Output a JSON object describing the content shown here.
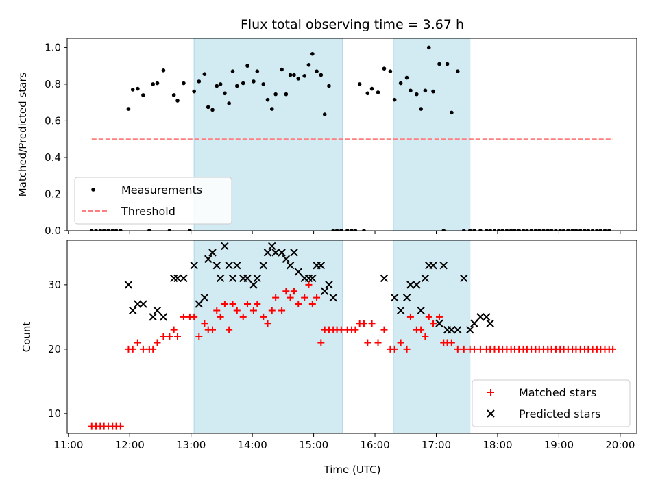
{
  "chart_data": {
    "type": "scatter",
    "title": "Flux total observing time = 3.67 h",
    "xlabel": "Time (UTC)",
    "xlim_hours": [
      10.98,
      20.27
    ],
    "x_ticks": [
      {
        "hour": 11,
        "label": "11:00"
      },
      {
        "hour": 12,
        "label": "12:00"
      },
      {
        "hour": 13,
        "label": "13:00"
      },
      {
        "hour": 14,
        "label": "14:00"
      },
      {
        "hour": 15,
        "label": "15:00"
      },
      {
        "hour": 16,
        "label": "16:00"
      },
      {
        "hour": 17,
        "label": "17:00"
      },
      {
        "hour": 18,
        "label": "18:00"
      },
      {
        "hour": 19,
        "label": "19:00"
      },
      {
        "hour": 20,
        "label": "20:00"
      }
    ],
    "shaded_intervals_hours": [
      [
        13.05,
        15.47
      ],
      [
        16.3,
        17.55
      ]
    ],
    "shade_color": "#add8e6",
    "panels": [
      {
        "ylabel": "Matched/Predicted stars",
        "ylim": [
          0.0,
          1.05
        ],
        "y_ticks": [
          {
            "v": 0.0,
            "label": "0.0"
          },
          {
            "v": 0.2,
            "label": "0.2"
          },
          {
            "v": 0.4,
            "label": "0.4"
          },
          {
            "v": 0.6,
            "label": "0.6"
          },
          {
            "v": 0.8,
            "label": "0.8"
          },
          {
            "v": 1.0,
            "label": "1.0"
          }
        ],
        "legend_position": "lower-left",
        "series": [
          {
            "name": "Measurements",
            "marker": "dot",
            "color": "#000000",
            "x": [
              11.38,
              11.45,
              11.52,
              11.58,
              11.65,
              11.72,
              11.78,
              11.85,
              11.98,
              12.05,
              12.13,
              12.22,
              12.32,
              12.38,
              12.45,
              12.55,
              12.65,
              12.72,
              12.78,
              12.88,
              12.98,
              13.05,
              13.13,
              13.22,
              13.28,
              13.35,
              13.42,
              13.48,
              13.55,
              13.62,
              13.68,
              13.75,
              13.85,
              13.92,
              14.02,
              14.08,
              14.18,
              14.25,
              14.32,
              14.38,
              14.48,
              14.55,
              14.62,
              14.68,
              14.75,
              14.85,
              14.92,
              14.98,
              15.05,
              15.12,
              15.18,
              15.25,
              15.32,
              15.38,
              15.45,
              15.55,
              15.62,
              15.68,
              15.75,
              15.82,
              15.88,
              15.95,
              16.05,
              16.15,
              16.25,
              16.32,
              16.42,
              16.52,
              16.58,
              16.68,
              16.75,
              16.82,
              16.88,
              16.95,
              17.05,
              17.12,
              17.18,
              17.25,
              17.35,
              17.45,
              17.55,
              17.62,
              17.72,
              17.82,
              17.88,
              17.95,
              18.02,
              18.08,
              18.15,
              18.22,
              18.28,
              18.35,
              18.42,
              18.48,
              18.55,
              18.62,
              18.68,
              18.75,
              18.82,
              18.88,
              18.95,
              19.02,
              19.08,
              19.15,
              19.22,
              19.28,
              19.35,
              19.42,
              19.48,
              19.55,
              19.62,
              19.68,
              19.75,
              19.82
            ],
            "y": [
              0,
              0,
              0,
              0,
              0,
              0,
              0,
              0,
              0.665,
              0.77,
              0.775,
              0.74,
              0,
              0.8,
              0.805,
              0.875,
              0,
              0.74,
              0.71,
              0.805,
              0,
              0.76,
              0.815,
              0.855,
              0.675,
              0.66,
              0.79,
              0.8,
              0.75,
              0.695,
              0.87,
              0.79,
              0.805,
              0.9,
              0.815,
              0.87,
              0.8,
              0.715,
              0.665,
              0.745,
              0.88,
              0.745,
              0.85,
              0.85,
              0.83,
              0.845,
              0.905,
              0.965,
              0.87,
              0.85,
              0.635,
              0.79,
              0,
              0,
              0,
              0,
              0,
              0,
              0.8,
              0,
              0.75,
              0.775,
              0.755,
              0.885,
              0.87,
              0.715,
              0.805,
              0.835,
              0.765,
              0.745,
              0.665,
              0.765,
              1.0,
              0.76,
              0.91,
              0,
              0.91,
              0.645,
              0.87,
              0,
              0,
              0,
              0,
              0,
              0,
              0,
              0,
              0,
              0,
              0,
              0,
              0,
              0,
              0,
              0,
              0,
              0,
              0,
              0,
              0,
              0,
              0,
              0,
              0,
              0,
              0,
              0,
              0,
              0,
              0,
              0,
              0,
              0,
              0
            ]
          },
          {
            "name": "Threshold",
            "marker": "dashed-line",
            "color": "#ff7f7f",
            "x": [
              11.38,
              19.88
            ],
            "y": [
              0.5,
              0.5
            ]
          }
        ]
      },
      {
        "ylabel": "Count",
        "ylim": [
          6.9,
          36.9
        ],
        "y_ticks": [
          {
            "v": 10,
            "label": "10"
          },
          {
            "v": 20,
            "label": "20"
          },
          {
            "v": 30,
            "label": "30"
          }
        ],
        "legend_position": "lower-right",
        "series": [
          {
            "name": "Matched stars",
            "marker": "plus",
            "color": "#ff0000",
            "x": [
              11.38,
              11.45,
              11.52,
              11.58,
              11.65,
              11.72,
              11.78,
              11.85,
              11.98,
              12.05,
              12.13,
              12.22,
              12.32,
              12.38,
              12.45,
              12.55,
              12.65,
              12.72,
              12.78,
              12.88,
              12.98,
              13.05,
              13.13,
              13.22,
              13.28,
              13.35,
              13.42,
              13.48,
              13.55,
              13.62,
              13.68,
              13.75,
              13.85,
              13.92,
              14.02,
              14.08,
              14.18,
              14.25,
              14.32,
              14.38,
              14.48,
              14.55,
              14.62,
              14.68,
              14.75,
              14.85,
              14.92,
              14.98,
              15.05,
              15.12,
              15.18,
              15.25,
              15.32,
              15.38,
              15.45,
              15.55,
              15.62,
              15.68,
              15.75,
              15.82,
              15.88,
              15.95,
              16.05,
              16.15,
              16.25,
              16.32,
              16.42,
              16.52,
              16.58,
              16.68,
              16.75,
              16.82,
              16.88,
              16.95,
              17.05,
              17.12,
              17.18,
              17.25,
              17.35,
              17.45,
              17.55,
              17.62,
              17.72,
              17.82,
              17.88,
              17.95,
              18.02,
              18.08,
              18.15,
              18.22,
              18.28,
              18.35,
              18.42,
              18.48,
              18.55,
              18.62,
              18.68,
              18.75,
              18.82,
              18.88,
              18.95,
              19.02,
              19.08,
              19.15,
              19.22,
              19.28,
              19.35,
              19.42,
              19.48,
              19.55,
              19.62,
              19.68,
              19.75,
              19.82,
              19.88
            ],
            "y": [
              8,
              8,
              8,
              8,
              8,
              8,
              8,
              8,
              20,
              20,
              21,
              20,
              20,
              20,
              21,
              22,
              22,
              23,
              22,
              25,
              25,
              25,
              22,
              24,
              23,
              23,
              26,
              25,
              27,
              23,
              27,
              26,
              25,
              27,
              26,
              27,
              25,
              24,
              26,
              28,
              26,
              29,
              28,
              29,
              27,
              28,
              30,
              27,
              28,
              21,
              23,
              23,
              23,
              23,
              23,
              23,
              23,
              23,
              24,
              24,
              21,
              24,
              21,
              23,
              20,
              20,
              21,
              20,
              25,
              23,
              23,
              22,
              25,
              24,
              25,
              21,
              21,
              21,
              20,
              20,
              20,
              20,
              20,
              20,
              20,
              20,
              20,
              20,
              20,
              20,
              20,
              20,
              20,
              20,
              20,
              20,
              20,
              20,
              20,
              20,
              20,
              20,
              20,
              20,
              20,
              20,
              20,
              20,
              20,
              20,
              20,
              20,
              20,
              20,
              20
            ]
          },
          {
            "name": "Predicted stars",
            "marker": "x",
            "color": "#000000",
            "x": [
              11.98,
              12.05,
              12.13,
              12.22,
              12.38,
              12.45,
              12.55,
              12.72,
              12.78,
              12.88,
              13.05,
              13.13,
              13.22,
              13.28,
              13.35,
              13.42,
              13.48,
              13.55,
              13.62,
              13.68,
              13.75,
              13.85,
              13.92,
              14.02,
              14.08,
              14.18,
              14.25,
              14.32,
              14.38,
              14.48,
              14.55,
              14.62,
              14.68,
              14.75,
              14.85,
              14.92,
              14.98,
              15.05,
              15.12,
              15.18,
              15.25,
              15.32,
              16.15,
              16.32,
              16.42,
              16.52,
              16.58,
              16.68,
              16.75,
              16.82,
              16.88,
              16.95,
              17.05,
              17.12,
              17.18,
              17.25,
              17.35,
              17.45,
              17.55,
              17.62,
              17.72,
              17.82,
              17.88
            ],
            "y": [
              30,
              26,
              27,
              27,
              25,
              26,
              25,
              31,
              31,
              31,
              33,
              27,
              28,
              34,
              35,
              33,
              31,
              36,
              33,
              31,
              33,
              31,
              31,
              30,
              31,
              33,
              35,
              36,
              35,
              35,
              34,
              33,
              35,
              32,
              31,
              31,
              31,
              33,
              33,
              29,
              30,
              28,
              31,
              28,
              26,
              28,
              30,
              30,
              26,
              31,
              33,
              33,
              24,
              33,
              23,
              23,
              23,
              31,
              23,
              24,
              25,
              25,
              24
            ]
          }
        ]
      }
    ]
  }
}
